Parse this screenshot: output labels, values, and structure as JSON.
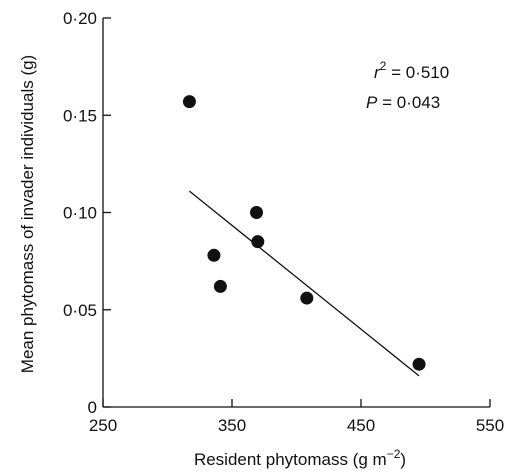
{
  "chart_data": {
    "type": "scatter",
    "title": "",
    "xlabel": "Resident phytomass (g m−2)",
    "ylabel": "Mean phytomass of invader individuals (g)",
    "xlim": [
      250,
      550
    ],
    "ylim": [
      0,
      0.2
    ],
    "x_ticks": [
      "250",
      "350",
      "450",
      "550"
    ],
    "y_ticks": [
      "0",
      "0·05",
      "0·10",
      "0·15",
      "0·20"
    ],
    "points": [
      {
        "x": 317,
        "y": 0.157
      },
      {
        "x": 336,
        "y": 0.078
      },
      {
        "x": 341,
        "y": 0.062
      },
      {
        "x": 369,
        "y": 0.1
      },
      {
        "x": 370,
        "y": 0.085
      },
      {
        "x": 408,
        "y": 0.056
      },
      {
        "x": 495,
        "y": 0.022
      }
    ],
    "regression_line": {
      "x": [
        317,
        495
      ],
      "y": [
        0.111,
        0.016
      ]
    },
    "annotations": {
      "r2_label": "r² = 0·510",
      "r2_symbol": "r",
      "r2_superscript": "2",
      "r2_value": " = 0·510",
      "p_label": "P = 0·043",
      "p_symbol": "P",
      "p_value": " = 0·043"
    },
    "grid": false,
    "legend": "none",
    "colors": {
      "points": "#111111",
      "line": "#111111",
      "axes": "#111111"
    }
  }
}
